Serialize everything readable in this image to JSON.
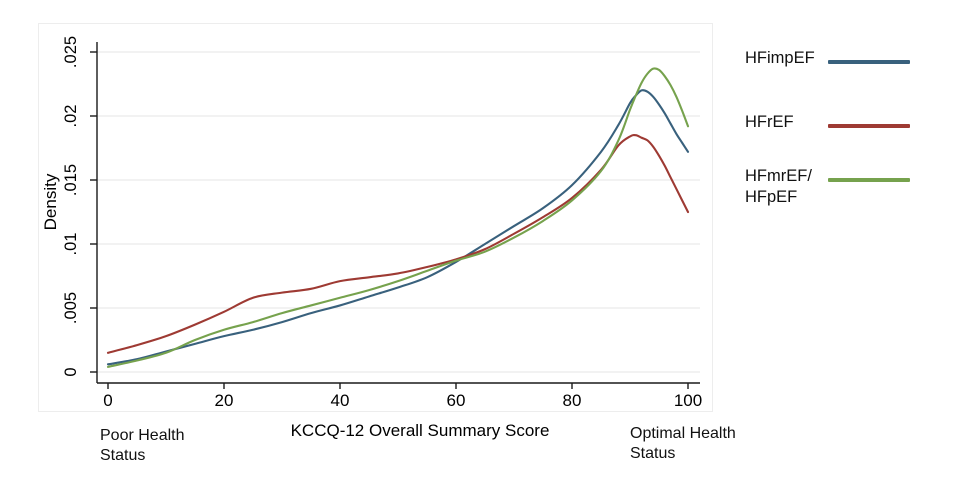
{
  "figure": {
    "background": "#ffffff",
    "graph_border_color": "#ededed",
    "gridline_color": "#e4e4e4",
    "axis_color": "#1a1a1a",
    "text_color": "#000000"
  },
  "chart_data": {
    "type": "line",
    "title": "",
    "xlabel": "KCCQ-12 Overall Summary Score",
    "ylabel": "Density",
    "xlim": [
      0,
      100
    ],
    "ylim": [
      0,
      0.025
    ],
    "xticks": [
      0,
      20,
      40,
      60,
      80,
      100
    ],
    "xtick_labels": [
      "0",
      "20",
      "40",
      "60",
      "80",
      "100"
    ],
    "yticks": [
      0,
      0.005,
      0.01,
      0.015,
      0.02,
      0.025
    ],
    "ytick_labels": [
      "0",
      ".005",
      ".01",
      ".015",
      ".02",
      ".025"
    ],
    "ytick_labels_rotated": true,
    "grid": "horizontal",
    "legend_position": "outside-right",
    "x": [
      0,
      5,
      10,
      15,
      20,
      25,
      30,
      35,
      40,
      45,
      50,
      55,
      60,
      65,
      70,
      75,
      80,
      85,
      88,
      90,
      91,
      92,
      93,
      94,
      95,
      96,
      97,
      98,
      99,
      100
    ],
    "series": [
      {
        "name": "HFimpEF",
        "label_lines": [
          "HFimpEF"
        ],
        "color": "#39617d",
        "values": [
          0.0006,
          0.001,
          0.0016,
          0.0022,
          0.0028,
          0.0033,
          0.0039,
          0.0046,
          0.0052,
          0.0059,
          0.0066,
          0.0074,
          0.0086,
          0.01,
          0.0114,
          0.0128,
          0.0146,
          0.0172,
          0.0193,
          0.021,
          0.0216,
          0.022,
          0.0219,
          0.0215,
          0.0209,
          0.0202,
          0.0194,
          0.0186,
          0.0179,
          0.0172
        ]
      },
      {
        "name": "HFrEF",
        "label_lines": [
          "HFrEF"
        ],
        "color": "#9e3a33",
        "values": [
          0.0015,
          0.0021,
          0.0028,
          0.0037,
          0.0047,
          0.0058,
          0.0062,
          0.0065,
          0.0071,
          0.0074,
          0.0077,
          0.0082,
          0.0088,
          0.0096,
          0.0108,
          0.0121,
          0.0136,
          0.0158,
          0.0177,
          0.0184,
          0.0185,
          0.0183,
          0.0181,
          0.0176,
          0.0169,
          0.0161,
          0.0152,
          0.0143,
          0.0134,
          0.0125
        ]
      },
      {
        "name": "HFmrEF/HFpEF",
        "label_lines": [
          "HFmrEF/",
          "HFpEF"
        ],
        "color": "#76a24d",
        "values": [
          0.0004,
          0.0009,
          0.0015,
          0.0025,
          0.0033,
          0.0039,
          0.0046,
          0.0052,
          0.0058,
          0.0064,
          0.0071,
          0.0079,
          0.0087,
          0.0094,
          0.0105,
          0.0118,
          0.0134,
          0.0157,
          0.0181,
          0.0205,
          0.0216,
          0.0226,
          0.0233,
          0.0237,
          0.0236,
          0.0231,
          0.0224,
          0.0215,
          0.0204,
          0.0192
        ]
      }
    ],
    "annotations": [
      {
        "id": "poor-health",
        "lines": [
          "Poor Health",
          "Status"
        ],
        "position": "below-axis-left"
      },
      {
        "id": "optimal-health",
        "lines": [
          "Optimal Health",
          "Status"
        ],
        "position": "below-axis-right"
      }
    ]
  }
}
